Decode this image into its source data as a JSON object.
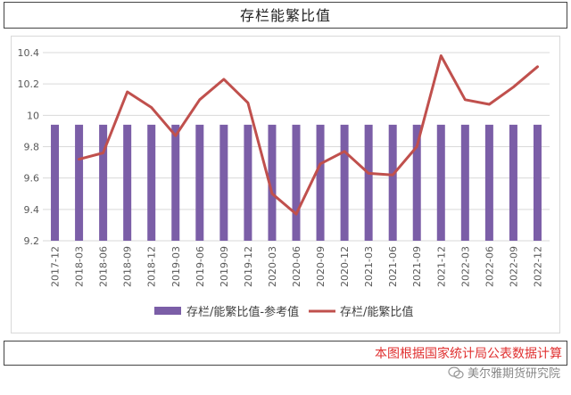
{
  "title": "存栏能繁比值",
  "source_note": "本图根据国家统计局公表数据计算",
  "watermark": "美尔雅期货研究院",
  "colors": {
    "bar": "#7b5ea7",
    "line": "#c0504d",
    "note": "#e03030"
  },
  "chart_data": {
    "type": "bar",
    "categories": [
      "2017-12",
      "2018-03",
      "2018-06",
      "2018-09",
      "2018-12",
      "2019-03",
      "2019-06",
      "2019-09",
      "2019-12",
      "2020-03",
      "2020-06",
      "2020-09",
      "2020-12",
      "2021-03",
      "2021-06",
      "2021-09",
      "2021-12",
      "2022-03",
      "2022-06",
      "2022-09",
      "2022-12"
    ],
    "ylim": [
      9.2,
      10.4
    ],
    "yticks": [
      "9.2",
      "9.4",
      "9.6",
      "9.8",
      "10",
      "10.2",
      "10.4"
    ],
    "series": [
      {
        "name": "存栏/能繁比值-参考值",
        "type": "bar",
        "values": [
          9.94,
          9.94,
          9.94,
          9.94,
          9.94,
          9.94,
          9.94,
          9.94,
          9.94,
          9.94,
          9.94,
          9.94,
          9.94,
          9.94,
          9.94,
          9.94,
          9.94,
          9.94,
          9.94,
          9.94,
          9.94
        ]
      },
      {
        "name": "存栏/能繁比值",
        "type": "line",
        "values": [
          null,
          9.72,
          9.76,
          10.15,
          10.05,
          9.87,
          10.1,
          10.23,
          10.08,
          9.5,
          9.37,
          9.69,
          9.77,
          9.63,
          9.62,
          9.8,
          10.38,
          10.1,
          10.07,
          10.18,
          10.31
        ]
      }
    ],
    "grid": true,
    "legend_position": "bottom"
  }
}
